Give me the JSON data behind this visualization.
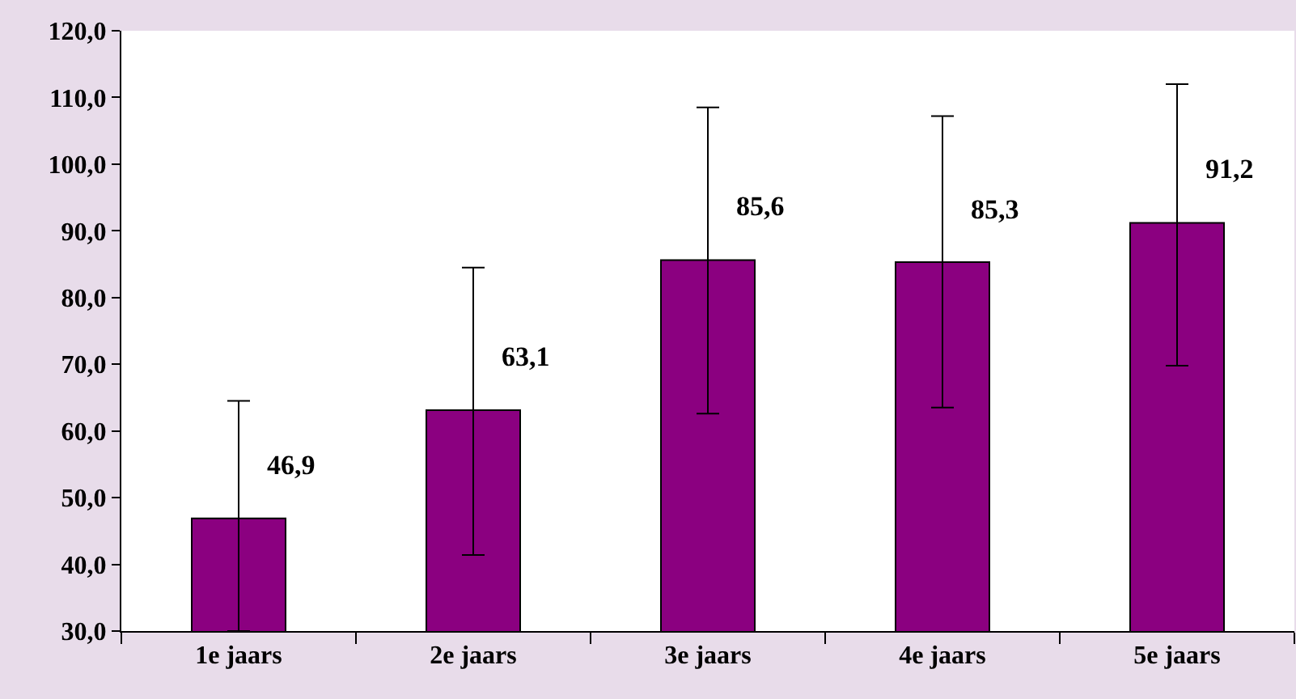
{
  "chart_data": {
    "type": "bar",
    "categories": [
      "1e jaars",
      "2e jaars",
      "3e jaars",
      "4e jaars",
      "5e jaars"
    ],
    "values": [
      46.9,
      63.1,
      85.6,
      85.3,
      91.2
    ],
    "errors": [
      [
        30.0,
        64.5
      ],
      [
        41.4,
        84.5
      ],
      [
        62.6,
        108.5
      ],
      [
        63.5,
        107.2
      ],
      [
        69.8,
        112.0
      ]
    ],
    "color": "#8b0080",
    "ylim": [
      30,
      120
    ],
    "yticks": [
      {
        "value": 30,
        "label": "30,0"
      },
      {
        "value": 40,
        "label": "40,0"
      },
      {
        "value": 50,
        "label": "50,0"
      },
      {
        "value": 60,
        "label": "60,0"
      },
      {
        "value": 70,
        "label": "70,0"
      },
      {
        "value": 80,
        "label": "80,0"
      },
      {
        "value": 90,
        "label": "90,0"
      },
      {
        "value": 100,
        "label": "100,0"
      },
      {
        "value": 110,
        "label": "110,0"
      },
      {
        "value": 120,
        "label": "120,0"
      }
    ],
    "value_labels": [
      "46,9",
      "63,1",
      "85,6",
      "85,3",
      "91,2"
    ]
  }
}
